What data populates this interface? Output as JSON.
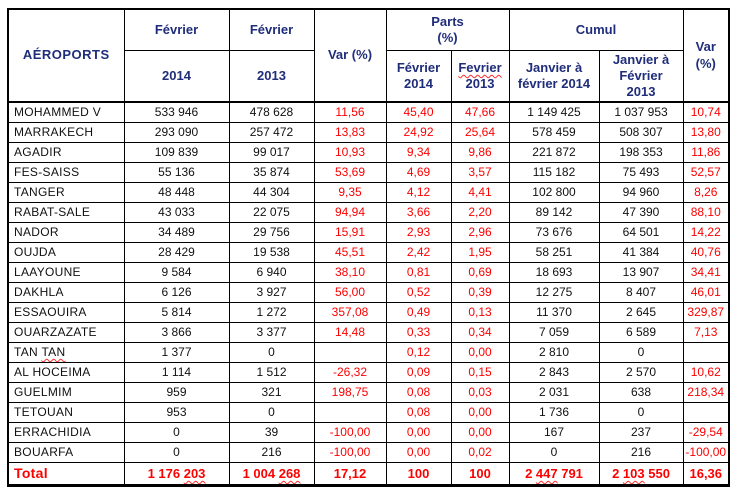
{
  "meta": {
    "wavy_marker": "~",
    "wavy_meaning": "spellcheck red squiggly underline on the enclosed segment"
  },
  "colors": {
    "header_text": "#1f2d7a",
    "value_red": "#fe0000",
    "body_text": "#101010",
    "border": "#000000",
    "background": "#ffffff"
  },
  "table": {
    "header": {
      "col_airports": "AÉROPORTS",
      "col_feb_a": "Février",
      "col_feb_b": "Février",
      "col_year_2014": "2014",
      "col_year_2013": "2013",
      "col_var": "Var (%)",
      "col_parts_group": "Parts\n(%)",
      "col_parts_2014": "Février\n2014",
      "col_parts_2013": "~Fevrier~\n2013",
      "col_cumul_group": "Cumul",
      "col_cumul_2014": "Janvier à\nfévrier 2014",
      "col_cumul_2013": "Janvier à\nFévrier\n2013",
      "col_var2": "Var\n(%)"
    },
    "rows": [
      [
        "MOHAMMED V",
        "533 946",
        "478 628",
        "11,56",
        "45,40",
        "47,66",
        "1 149 425",
        "1 037 953",
        "10,74"
      ],
      [
        "MARRAKECH",
        "293 090",
        "257 472",
        "13,83",
        "24,92",
        "25,64",
        "578 459",
        "508 307",
        "13,80"
      ],
      [
        "AGADIR",
        "109 839",
        "99 017",
        "10,93",
        "9,34",
        "9,86",
        "221 872",
        "198 353",
        "11,86"
      ],
      [
        "FES-SAISS",
        "55 136",
        "35 874",
        "53,69",
        "4,69",
        "3,57",
        "115 182",
        "75 493",
        "52,57"
      ],
      [
        "TANGER",
        "48 448",
        "44 304",
        "9,35",
        "4,12",
        "4,41",
        "102 800",
        "94 960",
        "8,26"
      ],
      [
        "RABAT-SALE",
        "43 033",
        "22 075",
        "94,94",
        "3,66",
        "2,20",
        "89 142",
        "47 390",
        "88,10"
      ],
      [
        "NADOR",
        "34 489",
        "29 756",
        "15,91",
        "2,93",
        "2,96",
        "73 676",
        "64 501",
        "14,22"
      ],
      [
        "OUJDA",
        "28 429",
        "19 538",
        "45,51",
        "2,42",
        "1,95",
        "58 251",
        "41 384",
        "40,76"
      ],
      [
        "LAAYOUNE",
        "9 584",
        "6 940",
        "38,10",
        "0,81",
        "0,69",
        "18 693",
        "13 907",
        "34,41"
      ],
      [
        "DAKHLA",
        "6 126",
        "3 927",
        "56,00",
        "0,52",
        "0,39",
        "12 275",
        "8 407",
        "46,01"
      ],
      [
        "ESSAOUIRA",
        "5 814",
        "1 272",
        "357,08",
        "0,49",
        "0,13",
        "11 370",
        "2 645",
        "329,87"
      ],
      [
        "OUARZAZATE",
        "3 866",
        "3 377",
        "14,48",
        "0,33",
        "0,34",
        "7 059",
        "6 589",
        "7,13"
      ],
      [
        "TAN ~TAN~",
        "1 377",
        "0",
        "",
        "0,12",
        "0,00",
        "2 810",
        "0",
        ""
      ],
      [
        "AL HOCEIMA",
        "1 114",
        "1 512",
        "-26,32",
        "0,09",
        "0,15",
        "2 843",
        "2 570",
        "10,62"
      ],
      [
        "GUELMIM",
        "959",
        "321",
        "198,75",
        "0,08",
        "0,03",
        "2 031",
        "638",
        "218,34"
      ],
      [
        "TETOUAN",
        "953",
        "0",
        "",
        "0,08",
        "0,00",
        "1 736",
        "0",
        ""
      ],
      [
        "ERRACHIDIA",
        "0",
        "39",
        "-100,00",
        "0,00",
        "0,00",
        "167",
        "237",
        "-29,54"
      ],
      [
        "BOUARFA",
        "0",
        "216",
        "-100,00",
        "0,00",
        "0,02",
        "0",
        "216",
        "-100,00"
      ]
    ],
    "total": [
      "Total",
      "1 176 ~203~",
      "1 004 ~268~",
      "17,12",
      "100",
      "100",
      "2 ~447~ 791",
      "2 ~103~ 550",
      "16,36"
    ]
  }
}
